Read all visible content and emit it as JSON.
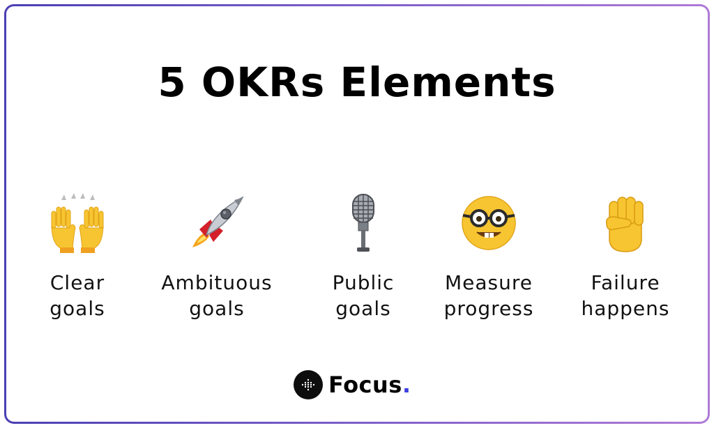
{
  "title": "5 OKRs Elements",
  "elements": [
    {
      "icon": "raising-hands-icon",
      "line1": "Clear",
      "line2": "goals"
    },
    {
      "icon": "rocket-icon",
      "line1": "Ambituous",
      "line2": "goals"
    },
    {
      "icon": "microphone-icon",
      "line1": "Public",
      "line2": "goals"
    },
    {
      "icon": "nerd-face-icon",
      "line1": "Measure",
      "line2": "progress"
    },
    {
      "icon": "raised-fist-icon",
      "line1": "Failure",
      "line2": "happens"
    }
  ],
  "brand": {
    "name": "Focus",
    "dot": ".",
    "logo_icon": "dot-grid-logo-icon"
  },
  "colors": {
    "frame_start": "#4a3fb3",
    "frame_end": "#b07ad6",
    "brand_dot": "#3b3fe0",
    "emoji_yellow": "#f7c531"
  }
}
